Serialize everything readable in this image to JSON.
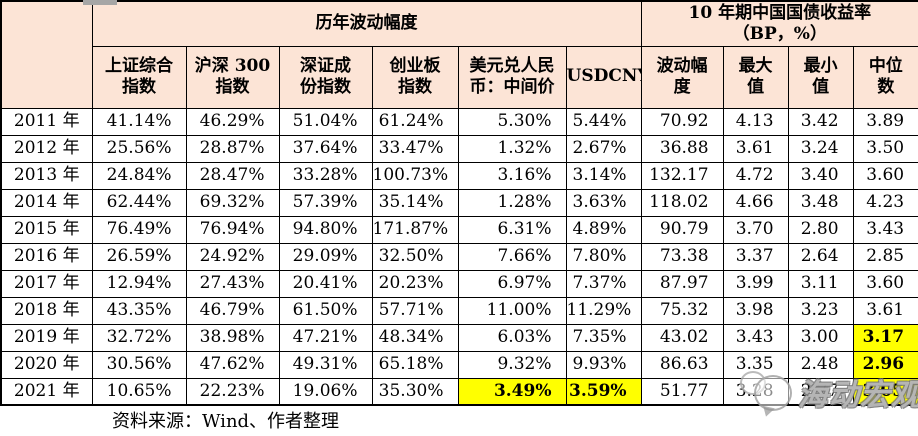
{
  "colors": {
    "header_bg": "#fce4d6",
    "highlight_bg": "#ffff00",
    "border": "#000000",
    "watermark_gray": "#969696"
  },
  "table": {
    "group_headers": {
      "volatility": "历年波动幅度",
      "bond_yield": "10 年期中国国债收益率\n（BP，%）"
    },
    "columns": [
      "上证综合\n指数",
      "沪深 300\n指数",
      "深证成\n份指数",
      "创业板\n指数",
      "美元兑人民\n币：中间价",
      "USDCNY",
      "波动幅\n度",
      "最大\n值",
      "最小\n值",
      "中位\n数"
    ],
    "rows": [
      {
        "year": "2011 年",
        "values": [
          "41.14%",
          "46.29%",
          "51.04%",
          "61.24%",
          "5.30%",
          "5.44%",
          "70.92",
          "4.13",
          "3.42",
          "3.89"
        ],
        "hl": []
      },
      {
        "year": "2012 年",
        "values": [
          "25.56%",
          "28.87%",
          "37.64%",
          "33.47%",
          "1.32%",
          "2.67%",
          "36.88",
          "3.61",
          "3.24",
          "3.50"
        ],
        "hl": []
      },
      {
        "year": "2013 年",
        "values": [
          "24.84%",
          "28.47%",
          "33.28%",
          "100.73%",
          "3.16%",
          "3.14%",
          "132.17",
          "4.72",
          "3.40",
          "3.60"
        ],
        "hl": []
      },
      {
        "year": "2014 年",
        "values": [
          "62.44%",
          "69.32%",
          "57.39%",
          "35.14%",
          "1.28%",
          "3.63%",
          "118.02",
          "4.66",
          "3.48",
          "4.23"
        ],
        "hl": []
      },
      {
        "year": "2015 年",
        "values": [
          "76.49%",
          "76.94%",
          "94.80%",
          "171.87%",
          "6.31%",
          "4.89%",
          "90.79",
          "3.70",
          "2.80",
          "3.43"
        ],
        "hl": []
      },
      {
        "year": "2016 年",
        "values": [
          "26.59%",
          "24.92%",
          "29.09%",
          "32.50%",
          "7.66%",
          "7.80%",
          "73.38",
          "3.37",
          "2.64",
          "2.85"
        ],
        "hl": []
      },
      {
        "year": "2017 年",
        "values": [
          "12.94%",
          "27.43%",
          "20.41%",
          "20.23%",
          "6.97%",
          "7.37%",
          "87.97",
          "3.99",
          "3.11",
          "3.60"
        ],
        "hl": []
      },
      {
        "year": "2018 年",
        "values": [
          "43.35%",
          "46.79%",
          "61.50%",
          "57.71%",
          "11.00%",
          "11.29%",
          "75.32",
          "3.98",
          "3.23",
          "3.61"
        ],
        "hl": []
      },
      {
        "year": "2019 年",
        "values": [
          "32.72%",
          "38.98%",
          "47.21%",
          "48.34%",
          "6.03%",
          "7.35%",
          "43.02",
          "3.43",
          "3.00",
          "3.17"
        ],
        "hl": [
          9
        ]
      },
      {
        "year": "2020 年",
        "values": [
          "30.56%",
          "47.62%",
          "49.31%",
          "65.18%",
          "9.32%",
          "9.93%",
          "86.63",
          "3.35",
          "2.48",
          "2.96"
        ],
        "hl": [
          9
        ]
      },
      {
        "year": "2021 年",
        "values": [
          "10.65%",
          "22.23%",
          "19.06%",
          "35.30%",
          "3.49%",
          "3.59%",
          "51.77",
          "3.28",
          "2.77",
          "3.05"
        ],
        "hl": [
          4,
          5,
          9
        ]
      }
    ]
  },
  "footer": {
    "source_note": "资料来源：Wind、作者整理"
  },
  "watermark": {
    "text": "海动宏观"
  }
}
